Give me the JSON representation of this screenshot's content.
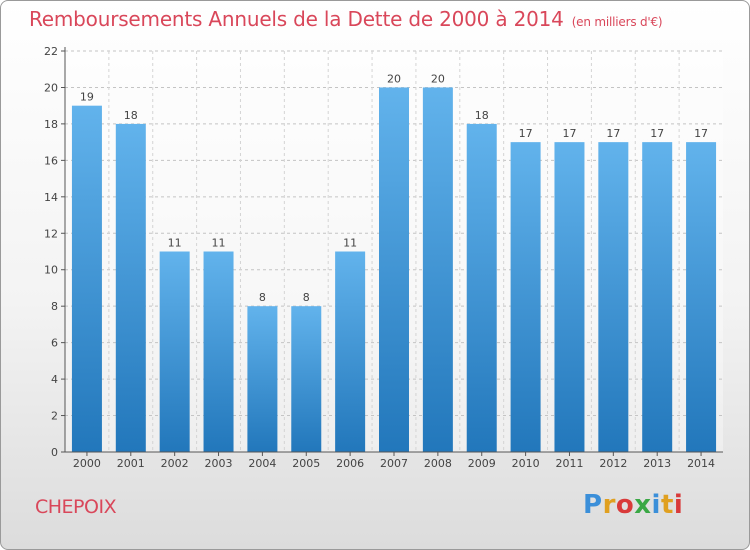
{
  "title": "Remboursements Annuels de la Dette de 2000 à 2014",
  "subtitle": "(en milliers d'€)",
  "commune": "CHEPOIX",
  "logo": {
    "letters": [
      "P",
      "r",
      "o",
      "x",
      "i",
      "t",
      "i"
    ],
    "colors": [
      "#3b8fd9",
      "#e0a020",
      "#d93a3a",
      "#3aa845",
      "#3b8fd9",
      "#e0a020",
      "#d93a3a"
    ]
  },
  "colors": {
    "bar_top": "#62b3ec",
    "bar_bottom": "#2277bb",
    "accent": "#d9475a"
  },
  "chart_data": {
    "type": "bar",
    "categories": [
      "2000",
      "2001",
      "2002",
      "2003",
      "2004",
      "2005",
      "2006",
      "2007",
      "2008",
      "2009",
      "2010",
      "2011",
      "2012",
      "2013",
      "2014"
    ],
    "values": [
      19,
      18,
      11,
      11,
      8,
      8,
      11,
      20,
      20,
      18,
      17,
      17,
      17,
      17,
      17
    ],
    "title": "Remboursements Annuels de la Dette de 2000 à 2014",
    "ylim": [
      0,
      22
    ],
    "yticks": [
      0,
      2,
      4,
      6,
      8,
      10,
      12,
      14,
      16,
      18,
      20,
      22
    ],
    "grid": "horizontal dashed",
    "data_labels": true
  }
}
